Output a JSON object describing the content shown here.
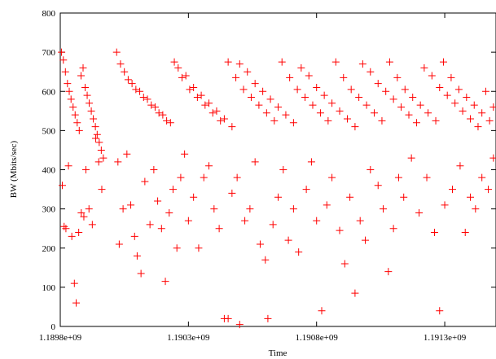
{
  "chart_data": {
    "type": "scatter",
    "title": "",
    "xlabel": "Time",
    "ylabel": "BW (Mbits/sec)",
    "xlim": [
      1189800000,
      1191500000
    ],
    "ylim": [
      0,
      800
    ],
    "grid": false,
    "legend": "none",
    "marker": "+",
    "color": "#ff0000",
    "x_ticks": [
      {
        "value": 1189800000,
        "label": "1.1898e+09"
      },
      {
        "value": 1190300000,
        "label": "1.1903e+09"
      },
      {
        "value": 1190800000,
        "label": "1.1908e+09"
      },
      {
        "value": 1191300000,
        "label": "1.1913e+09"
      }
    ],
    "y_ticks": [
      {
        "value": 0,
        "label": "0"
      },
      {
        "value": 100,
        "label": "100"
      },
      {
        "value": 200,
        "label": "200"
      },
      {
        "value": 300,
        "label": "300"
      },
      {
        "value": 400,
        "label": "400"
      },
      {
        "value": 500,
        "label": "500"
      },
      {
        "value": 600,
        "label": "600"
      },
      {
        "value": 700,
        "label": "700"
      },
      {
        "value": 800,
        "label": "800"
      }
    ],
    "series": [
      {
        "points": [
          [
            1189805000,
            700
          ],
          [
            1189812000,
            680
          ],
          [
            1189820000,
            650
          ],
          [
            1189828000,
            620
          ],
          [
            1189835000,
            600
          ],
          [
            1189842000,
            580
          ],
          [
            1189850000,
            560
          ],
          [
            1189858000,
            540
          ],
          [
            1189866000,
            520
          ],
          [
            1189874000,
            500
          ],
          [
            1189881000,
            640
          ],
          [
            1189889000,
            660
          ],
          [
            1189897000,
            610
          ],
          [
            1189905000,
            590
          ],
          [
            1189913000,
            570
          ],
          [
            1189921000,
            550
          ],
          [
            1189929000,
            530
          ],
          [
            1189937000,
            510
          ],
          [
            1189944000,
            490
          ],
          [
            1189952000,
            470
          ],
          [
            1189960000,
            450
          ],
          [
            1189968000,
            430
          ],
          [
            1189808000,
            360
          ],
          [
            1189815000,
            255
          ],
          [
            1189822000,
            250
          ],
          [
            1189832000,
            410
          ],
          [
            1189845000,
            230
          ],
          [
            1189855000,
            110
          ],
          [
            1189862000,
            60
          ],
          [
            1189872000,
            240
          ],
          [
            1189882000,
            290
          ],
          [
            1189892000,
            280
          ],
          [
            1189900000,
            400
          ],
          [
            1189912000,
            300
          ],
          [
            1189925000,
            260
          ],
          [
            1189938000,
            480
          ],
          [
            1189950000,
            420
          ],
          [
            1189962000,
            350
          ],
          [
            1190020000,
            700
          ],
          [
            1190050000,
            650
          ],
          [
            1190080000,
            620
          ],
          [
            1190110000,
            600
          ],
          [
            1190140000,
            580
          ],
          [
            1190170000,
            560
          ],
          [
            1190200000,
            540
          ],
          [
            1190230000,
            520
          ],
          [
            1190260000,
            660
          ],
          [
            1190290000,
            640
          ],
          [
            1190320000,
            610
          ],
          [
            1190350000,
            590
          ],
          [
            1190380000,
            570
          ],
          [
            1190410000,
            550
          ],
          [
            1190440000,
            530
          ],
          [
            1190470000,
            510
          ],
          [
            1190500000,
            670
          ],
          [
            1190530000,
            650
          ],
          [
            1190560000,
            620
          ],
          [
            1190590000,
            600
          ],
          [
            1190620000,
            580
          ],
          [
            1190650000,
            560
          ],
          [
            1190680000,
            540
          ],
          [
            1190710000,
            520
          ],
          [
            1190740000,
            660
          ],
          [
            1190770000,
            640
          ],
          [
            1190800000,
            610
          ],
          [
            1190830000,
            590
          ],
          [
            1190860000,
            570
          ],
          [
            1190890000,
            550
          ],
          [
            1190920000,
            530
          ],
          [
            1190950000,
            510
          ],
          [
            1190980000,
            670
          ],
          [
            1191010000,
            650
          ],
          [
            1191040000,
            620
          ],
          [
            1191070000,
            600
          ],
          [
            1191100000,
            580
          ],
          [
            1191130000,
            560
          ],
          [
            1191160000,
            540
          ],
          [
            1191190000,
            520
          ],
          [
            1191220000,
            660
          ],
          [
            1191250000,
            640
          ],
          [
            1191280000,
            610
          ],
          [
            1191310000,
            590
          ],
          [
            1191340000,
            570
          ],
          [
            1191370000,
            550
          ],
          [
            1191400000,
            530
          ],
          [
            1191430000,
            510
          ],
          [
            1191460000,
            600
          ],
          [
            1191490000,
            560
          ],
          [
            1190035000,
            670
          ],
          [
            1190065000,
            630
          ],
          [
            1190095000,
            605
          ],
          [
            1190125000,
            585
          ],
          [
            1190155000,
            565
          ],
          [
            1190185000,
            545
          ],
          [
            1190215000,
            525
          ],
          [
            1190245000,
            675
          ],
          [
            1190275000,
            635
          ],
          [
            1190305000,
            605
          ],
          [
            1190335000,
            585
          ],
          [
            1190365000,
            565
          ],
          [
            1190395000,
            545
          ],
          [
            1190425000,
            525
          ],
          [
            1190455000,
            675
          ],
          [
            1190485000,
            635
          ],
          [
            1190515000,
            605
          ],
          [
            1190545000,
            585
          ],
          [
            1190575000,
            565
          ],
          [
            1190605000,
            545
          ],
          [
            1190635000,
            525
          ],
          [
            1190665000,
            675
          ],
          [
            1190695000,
            635
          ],
          [
            1190725000,
            605
          ],
          [
            1190755000,
            585
          ],
          [
            1190785000,
            565
          ],
          [
            1190815000,
            545
          ],
          [
            1190845000,
            525
          ],
          [
            1190875000,
            675
          ],
          [
            1190905000,
            635
          ],
          [
            1190935000,
            605
          ],
          [
            1190965000,
            585
          ],
          [
            1190995000,
            565
          ],
          [
            1191025000,
            545
          ],
          [
            1191055000,
            525
          ],
          [
            1191085000,
            675
          ],
          [
            1191115000,
            635
          ],
          [
            1191145000,
            605
          ],
          [
            1191175000,
            585
          ],
          [
            1191205000,
            565
          ],
          [
            1191235000,
            545
          ],
          [
            1191265000,
            525
          ],
          [
            1191295000,
            675
          ],
          [
            1191325000,
            635
          ],
          [
            1191355000,
            605
          ],
          [
            1191385000,
            585
          ],
          [
            1191415000,
            565
          ],
          [
            1191445000,
            545
          ],
          [
            1191475000,
            525
          ],
          [
            1190025000,
            420
          ],
          [
            1190030000,
            210
          ],
          [
            1190045000,
            300
          ],
          [
            1190060000,
            440
          ],
          [
            1190075000,
            310
          ],
          [
            1190090000,
            230
          ],
          [
            1190100000,
            180
          ],
          [
            1190115000,
            135
          ],
          [
            1190130000,
            370
          ],
          [
            1190150000,
            260
          ],
          [
            1190165000,
            400
          ],
          [
            1190180000,
            320
          ],
          [
            1190195000,
            250
          ],
          [
            1190210000,
            115
          ],
          [
            1190225000,
            290
          ],
          [
            1190240000,
            350
          ],
          [
            1190255000,
            200
          ],
          [
            1190270000,
            380
          ],
          [
            1190285000,
            440
          ],
          [
            1190300000,
            270
          ],
          [
            1190320000,
            330
          ],
          [
            1190340000,
            200
          ],
          [
            1190360000,
            380
          ],
          [
            1190380000,
            410
          ],
          [
            1190400000,
            300
          ],
          [
            1190420000,
            250
          ],
          [
            1190440000,
            20
          ],
          [
            1190455000,
            20
          ],
          [
            1190470000,
            340
          ],
          [
            1190490000,
            380
          ],
          [
            1190500000,
            5
          ],
          [
            1190520000,
            270
          ],
          [
            1190540000,
            300
          ],
          [
            1190560000,
            420
          ],
          [
            1190580000,
            210
          ],
          [
            1190600000,
            170
          ],
          [
            1190610000,
            20
          ],
          [
            1190630000,
            260
          ],
          [
            1190650000,
            330
          ],
          [
            1190670000,
            400
          ],
          [
            1190690000,
            220
          ],
          [
            1190710000,
            300
          ],
          [
            1190730000,
            190
          ],
          [
            1190760000,
            350
          ],
          [
            1190780000,
            420
          ],
          [
            1190800000,
            270
          ],
          [
            1190820000,
            40
          ],
          [
            1190840000,
            310
          ],
          [
            1190860000,
            380
          ],
          [
            1190890000,
            245
          ],
          [
            1190910000,
            160
          ],
          [
            1190930000,
            330
          ],
          [
            1190950000,
            85
          ],
          [
            1190970000,
            270
          ],
          [
            1190990000,
            220
          ],
          [
            1191010000,
            400
          ],
          [
            1191040000,
            360
          ],
          [
            1191060000,
            300
          ],
          [
            1191080000,
            140
          ],
          [
            1191100000,
            250
          ],
          [
            1191120000,
            380
          ],
          [
            1191140000,
            330
          ],
          [
            1191170000,
            430
          ],
          [
            1191200000,
            290
          ],
          [
            1191230000,
            380
          ],
          [
            1191260000,
            240
          ],
          [
            1191280000,
            40
          ],
          [
            1191300000,
            310
          ],
          [
            1191330000,
            350
          ],
          [
            1191360000,
            410
          ],
          [
            1191380000,
            240
          ],
          [
            1191400000,
            330
          ],
          [
            1191420000,
            300
          ],
          [
            1191445000,
            380
          ],
          [
            1191470000,
            350
          ],
          [
            1191490000,
            430
          ]
        ]
      }
    ]
  }
}
